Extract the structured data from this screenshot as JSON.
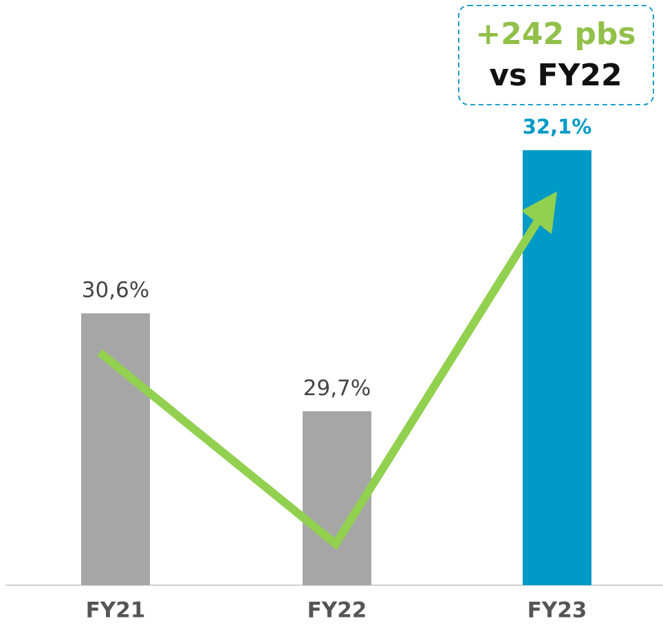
{
  "chart_data": {
    "type": "bar",
    "categories": [
      "FY21",
      "FY22",
      "FY23"
    ],
    "values": [
      30.6,
      29.7,
      32.1
    ],
    "value_labels": [
      "30,6%",
      "29,7%",
      "32,1%"
    ],
    "colors": [
      "#a6a6a6",
      "#a6a6a6",
      "#009ac7"
    ],
    "ylim": [
      28.1,
      32.5
    ],
    "annotation": [
      "+242 pbs",
      "vs FY22"
    ]
  }
}
